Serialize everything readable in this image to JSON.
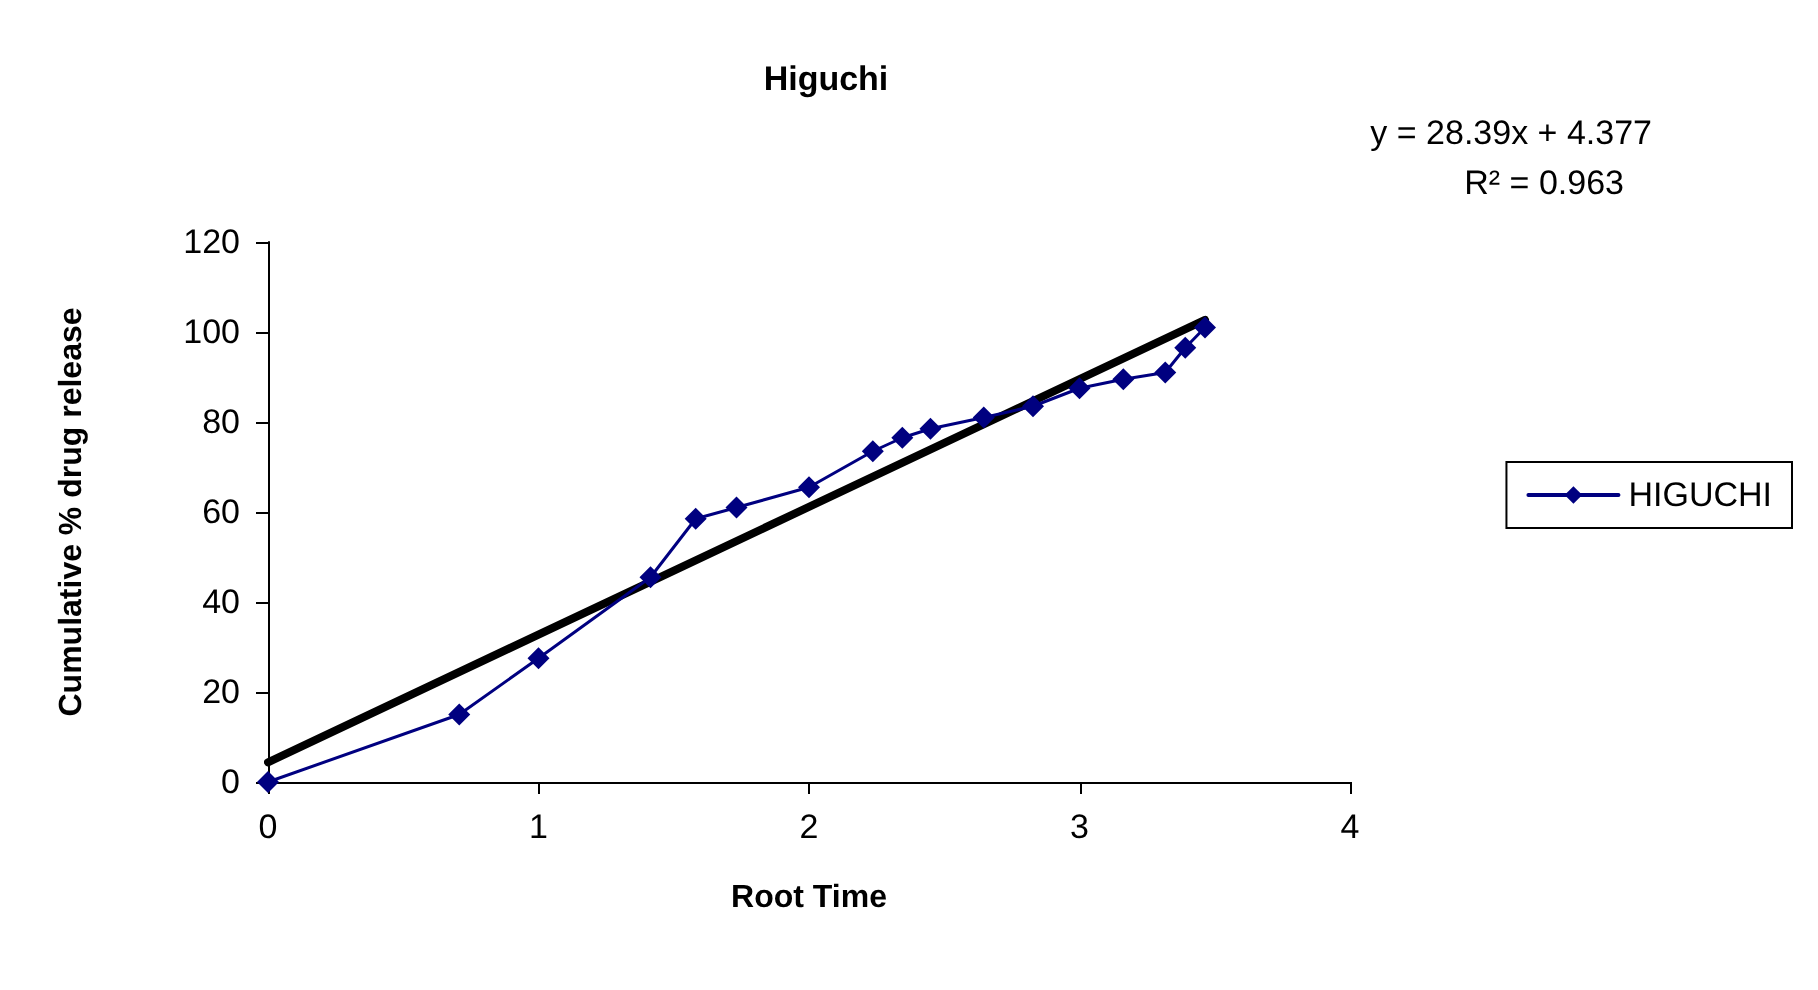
{
  "chart_data": {
    "type": "line",
    "title": "Higuchi",
    "xlabel": "Root Time",
    "ylabel": "Cumulative % drug release",
    "xlim": [
      0,
      4
    ],
    "xticks": [
      0,
      1,
      2,
      3,
      4
    ],
    "ylim": [
      0,
      120
    ],
    "yticks": [
      0,
      20,
      40,
      60,
      80,
      100,
      120
    ],
    "x": [
      0,
      0.707,
      1,
      1.414,
      1.581,
      1.732,
      2,
      2.236,
      2.345,
      2.449,
      2.646,
      2.828,
      3,
      3.162,
      3.317,
      3.391,
      3.464
    ],
    "series": [
      {
        "name": "HIGUCHI",
        "color": "#000080",
        "marker": "diamond",
        "values": [
          0,
          15,
          27.5,
          45.5,
          58.5,
          61,
          65.5,
          73.5,
          76.5,
          78.5,
          81,
          83.5,
          87.5,
          89.5,
          91,
          96.5,
          101
        ]
      },
      {
        "type": "line",
        "color": "#000000",
        "marker": "none",
        "x": [
          0,
          3.464
        ],
        "values": [
          4.377,
          102.7
        ]
      }
    ],
    "annotations": [
      "y = 28.39x + 4.377",
      "R² = 0.963"
    ],
    "grid": false,
    "legend": "right",
    "line_style": "solid"
  }
}
